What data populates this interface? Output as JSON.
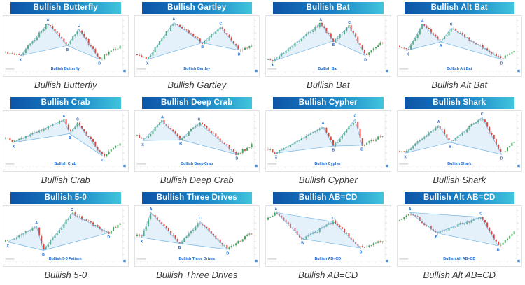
{
  "page": {
    "background": "#ffffff"
  },
  "colors": {
    "banner_gradient_start": "#0d55a7",
    "banner_gradient_mid": "#1b82c5",
    "banner_gradient_end": "#40c5dd",
    "banner_text": "#ffffff",
    "candle_up": "#3ba653",
    "candle_down": "#e1453d",
    "wick": "#8f8f8f",
    "pattern_line": "#74b6e4",
    "pattern_fill": "rgba(158,206,240,0.28)",
    "point_label": "#1565d0",
    "in_chart_label": "#1565d0",
    "caption_text": "#3a3a3a",
    "axis": "#c9c9c9",
    "axis_tick": "#bdbdbd",
    "corner_marker": "#4a90d9"
  },
  "chart_data": [
    {
      "type": "candlestick",
      "header": "Bullish Butterfly",
      "caption": "Bullish Butterfly",
      "in_chart_label": "Bullish Butterfly",
      "pattern": "XABCD",
      "seed": 11,
      "path": [
        [
          0,
          72
        ],
        [
          13,
          80
        ],
        [
          37,
          10
        ],
        [
          54,
          58
        ],
        [
          64,
          22
        ],
        [
          82,
          88
        ],
        [
          100,
          58
        ]
      ],
      "points": [
        {
          "label": "X",
          "x": 13,
          "y": 80,
          "pos": "b"
        },
        {
          "label": "A",
          "x": 37,
          "y": 10,
          "pos": "a"
        },
        {
          "label": "B",
          "x": 54,
          "y": 58,
          "pos": "b"
        },
        {
          "label": "C",
          "x": 64,
          "y": 22,
          "pos": "a"
        },
        {
          "label": "D",
          "x": 82,
          "y": 88,
          "pos": "b"
        }
      ],
      "triangles": [
        [
          "X",
          "A",
          "B"
        ],
        [
          "B",
          "C",
          "D"
        ]
      ]
    },
    {
      "type": "candlestick",
      "header": "Bullish Gartley",
      "caption": "Bullish Gartley",
      "in_chart_label": "Bullish Gartley",
      "pattern": "XABCD",
      "seed": 22,
      "path": [
        [
          0,
          78
        ],
        [
          9,
          88
        ],
        [
          32,
          8
        ],
        [
          57,
          52
        ],
        [
          73,
          18
        ],
        [
          89,
          68
        ],
        [
          100,
          60
        ]
      ],
      "points": [
        {
          "label": "X",
          "x": 9,
          "y": 88,
          "pos": "b"
        },
        {
          "label": "A",
          "x": 32,
          "y": 8,
          "pos": "a"
        },
        {
          "label": "B",
          "x": 57,
          "y": 52,
          "pos": "b"
        },
        {
          "label": "C",
          "x": 73,
          "y": 18,
          "pos": "a"
        },
        {
          "label": "D",
          "x": 89,
          "y": 68,
          "pos": "b"
        }
      ],
      "triangles": [
        [
          "X",
          "A",
          "B"
        ],
        [
          "B",
          "C",
          "D"
        ]
      ]
    },
    {
      "type": "candlestick",
      "header": "Bullish Bat",
      "caption": "Bullish Bat",
      "in_chart_label": "Bullish Bat",
      "pattern": "XABCD",
      "seed": 33,
      "path": [
        [
          0,
          88
        ],
        [
          4,
          92
        ],
        [
          46,
          10
        ],
        [
          57,
          48
        ],
        [
          71,
          16
        ],
        [
          85,
          80
        ],
        [
          100,
          50
        ]
      ],
      "points": [
        {
          "label": "X",
          "x": 4,
          "y": 92,
          "pos": "b"
        },
        {
          "label": "A",
          "x": 46,
          "y": 10,
          "pos": "a"
        },
        {
          "label": "B",
          "x": 57,
          "y": 48,
          "pos": "b"
        },
        {
          "label": "C",
          "x": 71,
          "y": 16,
          "pos": "a"
        },
        {
          "label": "D",
          "x": 85,
          "y": 80,
          "pos": "b"
        }
      ],
      "triangles": [
        [
          "X",
          "A",
          "B"
        ],
        [
          "B",
          "C",
          "D"
        ]
      ]
    },
    {
      "type": "candlestick",
      "header": "Bullish Alt Bat",
      "caption": "Bullish Alt Bat",
      "in_chart_label": "Bullish Alt Bat",
      "pattern": "XABCD",
      "seed": 44,
      "path": [
        [
          0,
          60
        ],
        [
          7,
          68
        ],
        [
          20,
          12
        ],
        [
          36,
          50
        ],
        [
          45,
          20
        ],
        [
          89,
          88
        ],
        [
          100,
          68
        ]
      ],
      "points": [
        {
          "label": "X",
          "x": 7,
          "y": 68,
          "pos": "b"
        },
        {
          "label": "A",
          "x": 20,
          "y": 12,
          "pos": "a"
        },
        {
          "label": "B",
          "x": 36,
          "y": 50,
          "pos": "b"
        },
        {
          "label": "C",
          "x": 45,
          "y": 20,
          "pos": "a"
        },
        {
          "label": "D",
          "x": 89,
          "y": 88,
          "pos": "b"
        }
      ],
      "triangles": [
        [
          "X",
          "A",
          "B"
        ],
        [
          "B",
          "C",
          "D"
        ]
      ]
    },
    {
      "type": "candlestick",
      "header": "Bullish Crab",
      "caption": "Bullish Crab",
      "in_chart_label": "Bullish Crab",
      "pattern": "XABCD",
      "seed": 55,
      "path": [
        [
          0,
          52
        ],
        [
          7,
          62
        ],
        [
          51,
          13
        ],
        [
          56,
          43
        ],
        [
          63,
          20
        ],
        [
          85,
          92
        ],
        [
          100,
          66
        ]
      ],
      "points": [
        {
          "label": "X",
          "x": 7,
          "y": 62,
          "pos": "b"
        },
        {
          "label": "A",
          "x": 51,
          "y": 13,
          "pos": "a"
        },
        {
          "label": "B",
          "x": 56,
          "y": 43,
          "pos": "b"
        },
        {
          "label": "C",
          "x": 63,
          "y": 20,
          "pos": "a"
        },
        {
          "label": "D",
          "x": 85,
          "y": 92,
          "pos": "b"
        }
      ],
      "triangles": [
        [
          "X",
          "A",
          "B"
        ],
        [
          "B",
          "C",
          "D"
        ]
      ]
    },
    {
      "type": "candlestick",
      "header": "Bullish Deep Crab",
      "caption": "Bullish Deep Crab",
      "in_chart_label": "Bullish Deep Crab",
      "pattern": "XABCD",
      "seed": 66,
      "path": [
        [
          0,
          48
        ],
        [
          5,
          58
        ],
        [
          22,
          15
        ],
        [
          38,
          56
        ],
        [
          54,
          20
        ],
        [
          87,
          88
        ],
        [
          100,
          68
        ]
      ],
      "points": [
        {
          "label": "X",
          "x": 5,
          "y": 58,
          "pos": "b"
        },
        {
          "label": "A",
          "x": 22,
          "y": 15,
          "pos": "a"
        },
        {
          "label": "B",
          "x": 38,
          "y": 56,
          "pos": "b"
        },
        {
          "label": "C",
          "x": 54,
          "y": 20,
          "pos": "a"
        },
        {
          "label": "D",
          "x": 87,
          "y": 88,
          "pos": "b"
        }
      ],
      "triangles": [
        [
          "X",
          "A",
          "B"
        ],
        [
          "B",
          "C",
          "D"
        ]
      ]
    },
    {
      "type": "candlestick",
      "header": "Bullish Cypher",
      "caption": "Bullish Cypher",
      "in_chart_label": "Bullish Cypher",
      "pattern": "XABCD",
      "seed": 77,
      "path": [
        [
          0,
          78
        ],
        [
          7,
          85
        ],
        [
          48,
          28
        ],
        [
          57,
          70
        ],
        [
          76,
          12
        ],
        [
          82,
          68
        ],
        [
          100,
          48
        ]
      ],
      "points": [
        {
          "label": "X",
          "x": 7,
          "y": 85,
          "pos": "b"
        },
        {
          "label": "A",
          "x": 48,
          "y": 28,
          "pos": "a"
        },
        {
          "label": "B",
          "x": 57,
          "y": 70,
          "pos": "b"
        },
        {
          "label": "C",
          "x": 76,
          "y": 12,
          "pos": "a"
        },
        {
          "label": "D",
          "x": 82,
          "y": 68,
          "pos": "b"
        }
      ],
      "triangles": [
        [
          "X",
          "A",
          "B"
        ],
        [
          "B",
          "C",
          "D"
        ]
      ]
    },
    {
      "type": "candlestick",
      "header": "Bullish Shark",
      "caption": "Bullish Shark",
      "in_chart_label": "Bullish Shark",
      "pattern": "XABCD",
      "seed": 88,
      "path": [
        [
          0,
          80
        ],
        [
          5,
          85
        ],
        [
          34,
          25
        ],
        [
          44,
          62
        ],
        [
          72,
          8
        ],
        [
          89,
          88
        ],
        [
          100,
          58
        ]
      ],
      "points": [
        {
          "label": "X",
          "x": 5,
          "y": 85,
          "pos": "b"
        },
        {
          "label": "A",
          "x": 34,
          "y": 25,
          "pos": "a"
        },
        {
          "label": "B",
          "x": 44,
          "y": 62,
          "pos": "b"
        },
        {
          "label": "C",
          "x": 72,
          "y": 8,
          "pos": "a"
        },
        {
          "label": "D",
          "x": 89,
          "y": 88,
          "pos": "b"
        }
      ],
      "triangles": [
        [
          "X",
          "A",
          "B"
        ],
        [
          "B",
          "C",
          "D"
        ]
      ]
    },
    {
      "type": "candlestick",
      "header": "Bullish 5-0",
      "caption": "Bullish 5-0",
      "in_chart_label": "Bullish 5-0 Pattern",
      "pattern": "XABCD",
      "seed": 99,
      "path": [
        [
          0,
          70
        ],
        [
          2,
          72
        ],
        [
          27,
          38
        ],
        [
          33,
          90
        ],
        [
          58,
          10
        ],
        [
          90,
          52
        ],
        [
          100,
          28
        ]
      ],
      "points": [
        {
          "label": "X",
          "x": 2,
          "y": 72,
          "pos": "b"
        },
        {
          "label": "A",
          "x": 27,
          "y": 38,
          "pos": "a"
        },
        {
          "label": "B",
          "x": 33,
          "y": 90,
          "pos": "b"
        },
        {
          "label": "C",
          "x": 58,
          "y": 10,
          "pos": "a"
        },
        {
          "label": "D",
          "x": 90,
          "y": 52,
          "pos": "b"
        }
      ],
      "triangles": [
        [
          "X",
          "A",
          "B"
        ],
        [
          "B",
          "C",
          "D"
        ]
      ]
    },
    {
      "type": "candlestick",
      "header": "Bullish Three Drives",
      "caption": "Bullish Three Drives",
      "in_chart_label": "Bullish Three Drives",
      "pattern": "XABCD",
      "seed": 110,
      "path": [
        [
          0,
          58
        ],
        [
          4,
          62
        ],
        [
          12,
          8
        ],
        [
          37,
          75
        ],
        [
          55,
          28
        ],
        [
          79,
          88
        ],
        [
          100,
          52
        ]
      ],
      "points": [
        {
          "label": "X",
          "x": 4,
          "y": 62,
          "pos": "b"
        },
        {
          "label": "A",
          "x": 12,
          "y": 8,
          "pos": "a"
        },
        {
          "label": "B",
          "x": 37,
          "y": 75,
          "pos": "b"
        },
        {
          "label": "C",
          "x": 55,
          "y": 28,
          "pos": "a"
        },
        {
          "label": "D",
          "x": 79,
          "y": 88,
          "pos": "b"
        }
      ],
      "triangles": [
        [
          "X",
          "A",
          "B"
        ],
        [
          "B",
          "C",
          "D"
        ]
      ]
    },
    {
      "type": "candlestick",
      "header": "Bullish AB=CD",
      "caption": "Bullish AB=CD",
      "in_chart_label": "Bullish AB=CD",
      "pattern": "ABCD",
      "seed": 121,
      "path": [
        [
          0,
          22
        ],
        [
          7,
          8
        ],
        [
          30,
          65
        ],
        [
          57,
          28
        ],
        [
          81,
          85
        ],
        [
          100,
          70
        ]
      ],
      "points": [
        {
          "label": "A",
          "x": 7,
          "y": 8,
          "pos": "a"
        },
        {
          "label": "B",
          "x": 30,
          "y": 65,
          "pos": "b"
        },
        {
          "label": "C",
          "x": 57,
          "y": 28,
          "pos": "a"
        },
        {
          "label": "D",
          "x": 81,
          "y": 85,
          "pos": "b"
        }
      ],
      "triangles": [
        [
          "A",
          "B",
          "C"
        ],
        [
          "B",
          "C",
          "D"
        ]
      ]
    },
    {
      "type": "candlestick",
      "header": "Bullish Alt AB=CD",
      "caption": "Bullish Alt AB=CD",
      "in_chart_label": "Bullish Alt AB=CD",
      "pattern": "ABCD",
      "seed": 132,
      "path": [
        [
          0,
          25
        ],
        [
          9,
          8
        ],
        [
          32,
          52
        ],
        [
          71,
          18
        ],
        [
          86,
          80
        ],
        [
          100,
          50
        ]
      ],
      "points": [
        {
          "label": "A",
          "x": 9,
          "y": 8,
          "pos": "a"
        },
        {
          "label": "B",
          "x": 32,
          "y": 52,
          "pos": "b"
        },
        {
          "label": "C",
          "x": 71,
          "y": 18,
          "pos": "a"
        },
        {
          "label": "D",
          "x": 86,
          "y": 80,
          "pos": "b"
        }
      ],
      "triangles": [
        [
          "A",
          "B",
          "C"
        ],
        [
          "B",
          "C",
          "D"
        ]
      ]
    }
  ]
}
